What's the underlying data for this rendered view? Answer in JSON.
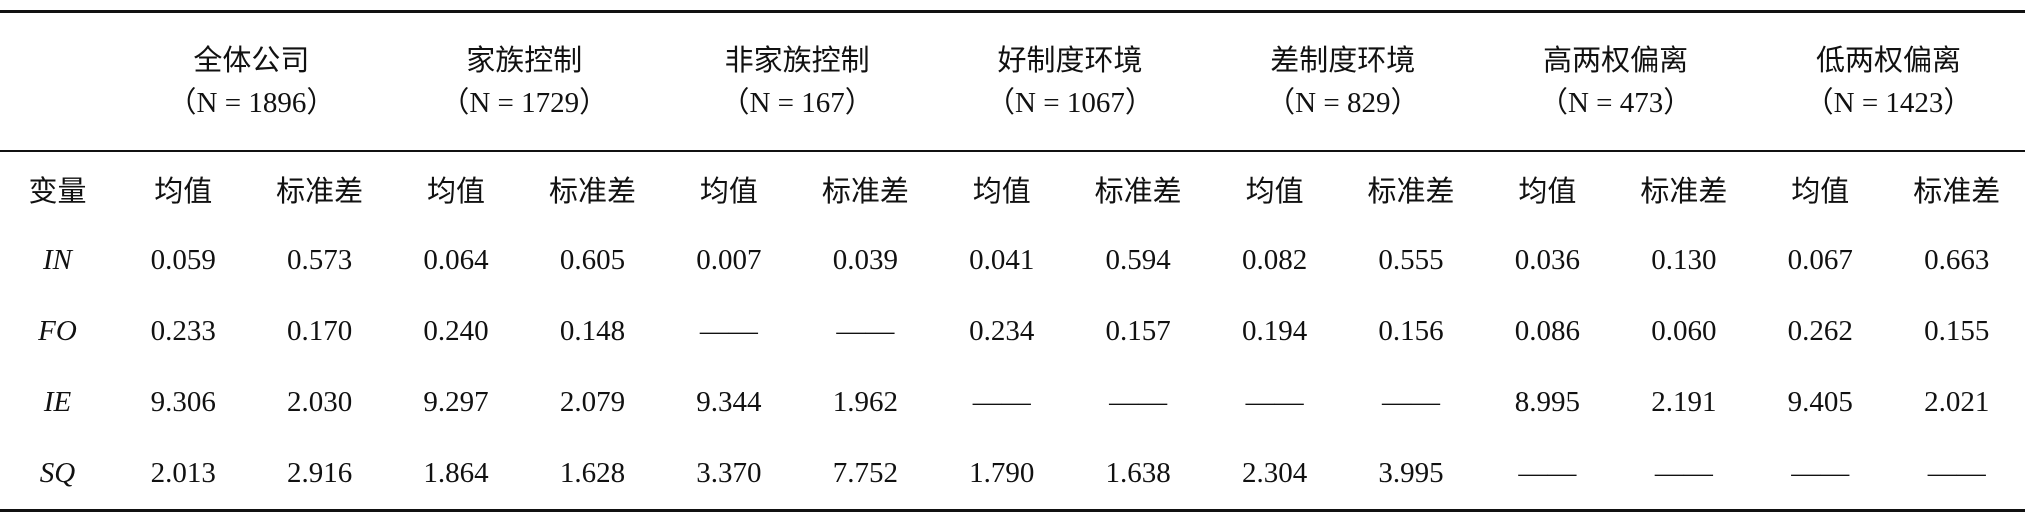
{
  "table": {
    "groups": [
      {
        "name": "全体公司",
        "n": "（N = 1896）"
      },
      {
        "name": "家族控制",
        "n": "（N = 1729）"
      },
      {
        "name": "非家族控制",
        "n": "（N = 167）"
      },
      {
        "name": "好制度环境",
        "n": "（N = 1067）"
      },
      {
        "name": "差制度环境",
        "n": "（N = 829）"
      },
      {
        "name": "高两权偏离",
        "n": "（N = 473）"
      },
      {
        "name": "低两权偏离",
        "n": "（N = 1423）"
      }
    ],
    "subheader": [
      "变量",
      "均值",
      "标准差",
      "均值",
      "标准差",
      "均值",
      "标准差",
      "均值",
      "标准差",
      "均值",
      "标准差",
      "均值",
      "标准差",
      "均值",
      "标准差"
    ],
    "rows": [
      {
        "variable": "IN",
        "cells": [
          "0.059",
          "0.573",
          "0.064",
          "0.605",
          "0.007",
          "0.039",
          "0.041",
          "0.594",
          "0.082",
          "0.555",
          "0.036",
          "0.130",
          "0.067",
          "0.663"
        ]
      },
      {
        "variable": "FO",
        "cells": [
          "0.233",
          "0.170",
          "0.240",
          "0.148",
          "——",
          "——",
          "0.234",
          "0.157",
          "0.194",
          "0.156",
          "0.086",
          "0.060",
          "0.262",
          "0.155"
        ]
      },
      {
        "variable": "IE",
        "cells": [
          "9.306",
          "2.030",
          "9.297",
          "2.079",
          "9.344",
          "1.962",
          "——",
          "——",
          "——",
          "——",
          "8.995",
          "2.191",
          "9.405",
          "2.021"
        ]
      },
      {
        "variable": "SQ",
        "cells": [
          "2.013",
          "2.916",
          "1.864",
          "1.628",
          "3.370",
          "7.752",
          "1.790",
          "1.638",
          "2.304",
          "3.995",
          "——",
          "——",
          "——",
          "——"
        ]
      }
    ]
  }
}
